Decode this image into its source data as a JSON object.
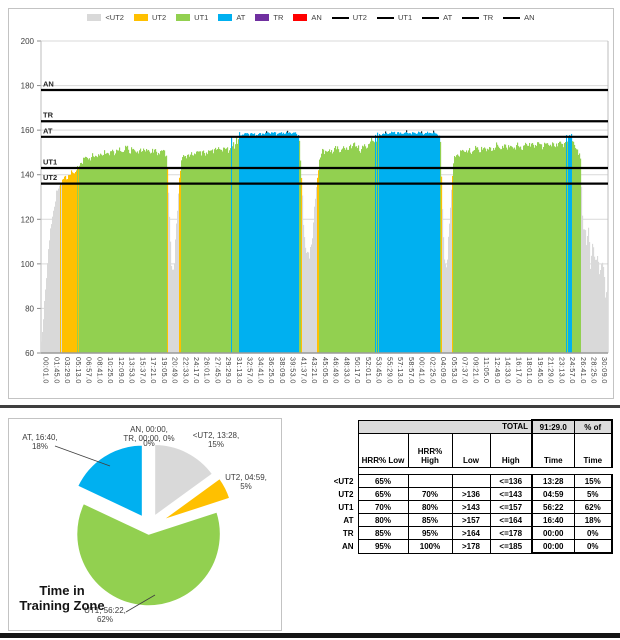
{
  "colors": {
    "lt_ut2": "#D9D9D9",
    "ut2": "#FFC000",
    "ut1": "#92D050",
    "at": "#00B0F0",
    "tr": "#7030A0",
    "an": "#FF0000",
    "zone_line": "#000000",
    "grid": "#D9D9D9",
    "axis": "#9a9a9a",
    "text": "#404040",
    "cap": "#262626"
  },
  "legend": {
    "area_items": [
      {
        "label": "<UT2",
        "color": "#D9D9D9"
      },
      {
        "label": "UT2",
        "color": "#FFC000"
      },
      {
        "label": "UT1",
        "color": "#92D050"
      },
      {
        "label": "AT",
        "color": "#00B0F0"
      },
      {
        "label": "TR",
        "color": "#7030A0"
      },
      {
        "label": "AN",
        "color": "#FF0000"
      }
    ],
    "line_items": [
      "UT2",
      "UT1",
      "AT",
      "TR",
      "AN"
    ]
  },
  "chart_data": {
    "type": "area",
    "title": "",
    "xlabel": "",
    "ylabel": "",
    "ylim": [
      60,
      200
    ],
    "yticks": [
      60,
      80,
      100,
      120,
      140,
      160,
      180,
      200
    ],
    "grid": true,
    "total_duration_s": 5489,
    "x_first_tick_s": 1,
    "x_tick_interval_s": 104,
    "xticklabels": [
      "00:01.0",
      "01:45.0",
      "03:29.0",
      "05:13.0",
      "06:57.0",
      "08:41.0",
      "10:25.0",
      "12:09.0",
      "13:53.0",
      "15:37.0",
      "17:21.0",
      "19:05.0",
      "20:49.0",
      "22:33.0",
      "24:17.0",
      "26:01.0",
      "27:45.0",
      "29:29.0",
      "31:13.0",
      "32:57.0",
      "34:41.0",
      "36:25.0",
      "38:09.0",
      "39:53.0",
      "41:37.0",
      "43:21.0",
      "45:05.0",
      "46:49.0",
      "48:33.0",
      "50:17.0",
      "52:01.0",
      "53:45.0",
      "55:29.0",
      "57:13.0",
      "58:57.0",
      "00:41.0",
      "02:25.0",
      "04:09.0",
      "05:53.0",
      "07:37.0",
      "09:21.0",
      "11:05.0",
      "12:49.0",
      "14:33.0",
      "16:17.0",
      "18:01.0",
      "19:45.0",
      "21:29.0",
      "23:13.0",
      "24:57.0",
      "26:41.0",
      "28:25.0",
      "30:09.0"
    ],
    "zones": [
      {
        "name": "<UT2",
        "max": 136,
        "color": "#D9D9D9"
      },
      {
        "name": "UT2",
        "max": 143,
        "color": "#FFC000"
      },
      {
        "name": "UT1",
        "max": 157,
        "color": "#92D050"
      },
      {
        "name": "AT",
        "max": 164,
        "color": "#00B0F0"
      },
      {
        "name": "TR",
        "max": 178,
        "color": "#7030A0"
      },
      {
        "name": "AN",
        "max": 185,
        "color": "#FF0000"
      }
    ],
    "zone_lines": [
      {
        "label": "UT2",
        "hr": 136
      },
      {
        "label": "UT1",
        "hr": 143
      },
      {
        "label": "AT",
        "hr": 157
      },
      {
        "label": "TR",
        "hr": 164
      },
      {
        "label": "AN",
        "hr": 178
      }
    ],
    "hr_profile": [
      [
        0,
        62
      ],
      [
        20,
        72
      ],
      [
        45,
        90
      ],
      [
        70,
        105
      ],
      [
        95,
        116
      ],
      [
        120,
        124
      ],
      [
        150,
        131
      ],
      [
        170,
        134
      ],
      [
        188,
        136.5
      ],
      [
        220,
        138
      ],
      [
        250,
        139
      ],
      [
        280,
        140
      ],
      [
        310,
        141
      ],
      [
        340,
        142
      ],
      [
        360,
        142.5
      ],
      [
        371,
        143.5
      ],
      [
        390,
        146
      ],
      [
        420,
        147
      ],
      [
        450,
        148
      ],
      [
        480,
        147
      ],
      [
        520,
        149
      ],
      [
        560,
        148
      ],
      [
        600,
        150
      ],
      [
        640,
        149
      ],
      [
        680,
        151
      ],
      [
        710,
        149
      ],
      [
        740,
        152
      ],
      [
        770,
        150
      ],
      [
        800,
        151
      ],
      [
        830,
        153
      ],
      [
        850,
        150
      ],
      [
        880,
        152
      ],
      [
        910,
        150
      ],
      [
        940,
        151
      ],
      [
        970,
        150
      ],
      [
        1000,
        152
      ],
      [
        1040,
        150
      ],
      [
        1080,
        151
      ],
      [
        1120,
        150
      ],
      [
        1160,
        150
      ],
      [
        1190,
        151
      ],
      [
        1218,
        149
      ],
      [
        1240,
        125
      ],
      [
        1262,
        100
      ],
      [
        1287,
        97
      ],
      [
        1310,
        115
      ],
      [
        1334,
        135
      ],
      [
        1357,
        146
      ],
      [
        1380,
        148
      ],
      [
        1410,
        149
      ],
      [
        1440,
        148
      ],
      [
        1470,
        150
      ],
      [
        1500,
        149
      ],
      [
        1530,
        151
      ],
      [
        1560,
        150
      ],
      [
        1590,
        149
      ],
      [
        1620,
        151
      ],
      [
        1650,
        150
      ],
      [
        1680,
        152
      ],
      [
        1710,
        151
      ],
      [
        1740,
        152
      ],
      [
        1770,
        151
      ],
      [
        1800,
        152
      ],
      [
        1832,
        151
      ],
      [
        1838,
        152
      ],
      [
        1843,
        158
      ],
      [
        1848,
        152
      ],
      [
        1862,
        153
      ],
      [
        1868,
        158
      ],
      [
        1873,
        153
      ],
      [
        1888,
        154
      ],
      [
        1895,
        158.5
      ],
      [
        1900,
        154
      ],
      [
        1912,
        155
      ],
      [
        1918,
        158.5
      ],
      [
        1933,
        158
      ],
      [
        2000,
        158.5
      ],
      [
        2100,
        158
      ],
      [
        2200,
        159
      ],
      [
        2300,
        158.5
      ],
      [
        2400,
        159
      ],
      [
        2470,
        158.5
      ],
      [
        2500,
        157.5
      ],
      [
        2525,
        135
      ],
      [
        2545,
        115
      ],
      [
        2570,
        105
      ],
      [
        2600,
        103
      ],
      [
        2625,
        112
      ],
      [
        2650,
        125
      ],
      [
        2675,
        138
      ],
      [
        2696,
        147
      ],
      [
        2720,
        150
      ],
      [
        2760,
        151
      ],
      [
        2800,
        150
      ],
      [
        2850,
        152
      ],
      [
        2900,
        151
      ],
      [
        2950,
        152
      ],
      [
        3000,
        152
      ],
      [
        3022,
        153
      ],
      [
        3030,
        158
      ],
      [
        3038,
        153
      ],
      [
        3060,
        152
      ],
      [
        3090,
        151
      ],
      [
        3120,
        153
      ],
      [
        3150,
        152
      ],
      [
        3168,
        153
      ],
      [
        3175,
        158
      ],
      [
        3182,
        153
      ],
      [
        3196,
        154
      ],
      [
        3205,
        158.5
      ],
      [
        3212,
        154
      ],
      [
        3228,
        155
      ],
      [
        3238,
        158.5
      ],
      [
        3248,
        155
      ],
      [
        3258,
        158.5
      ],
      [
        3270,
        156
      ],
      [
        3280,
        158.5
      ],
      [
        3295,
        158
      ],
      [
        3310,
        158.5
      ],
      [
        3334,
        158.5
      ],
      [
        3420,
        159
      ],
      [
        3480,
        158.5
      ],
      [
        3540,
        159
      ],
      [
        3600,
        158.5
      ],
      [
        3660,
        159
      ],
      [
        3720,
        158.5
      ],
      [
        3780,
        159
      ],
      [
        3830,
        158.5
      ],
      [
        3866,
        157
      ],
      [
        3885,
        125
      ],
      [
        3910,
        100
      ],
      [
        3930,
        98
      ],
      [
        3955,
        118
      ],
      [
        3975,
        135
      ],
      [
        3992,
        145
      ],
      [
        4010,
        148
      ],
      [
        4060,
        150
      ],
      [
        4110,
        151
      ],
      [
        4160,
        150
      ],
      [
        4210,
        152
      ],
      [
        4260,
        151
      ],
      [
        4310,
        152
      ],
      [
        4360,
        151
      ],
      [
        4410,
        153
      ],
      [
        4460,
        152
      ],
      [
        4510,
        153
      ],
      [
        4560,
        152
      ],
      [
        4610,
        153
      ],
      [
        4660,
        152
      ],
      [
        4710,
        154
      ],
      [
        4760,
        153
      ],
      [
        4810,
        154
      ],
      [
        4860,
        153
      ],
      [
        4910,
        154
      ],
      [
        4960,
        153
      ],
      [
        5010,
        154
      ],
      [
        5050,
        154
      ],
      [
        5074,
        154
      ],
      [
        5080,
        154
      ],
      [
        5086,
        158.5
      ],
      [
        5094,
        154
      ],
      [
        5102,
        155
      ],
      [
        5112,
        158.5
      ],
      [
        5125,
        158
      ],
      [
        5135,
        158.5
      ],
      [
        5145,
        155
      ],
      [
        5161,
        153
      ],
      [
        5180,
        152
      ],
      [
        5200,
        151
      ],
      [
        5219,
        148
      ],
      [
        5228,
        138
      ],
      [
        5240,
        125
      ],
      [
        5252,
        115
      ],
      [
        5265,
        120
      ],
      [
        5280,
        108
      ],
      [
        5300,
        114
      ],
      [
        5320,
        102
      ],
      [
        5345,
        110
      ],
      [
        5365,
        98
      ],
      [
        5390,
        106
      ],
      [
        5415,
        94
      ],
      [
        5440,
        102
      ],
      [
        5460,
        90
      ],
      [
        5489,
        86
      ]
    ]
  },
  "pie": {
    "title_line1": "Time in",
    "title_line2": "Training Zone",
    "slices": [
      {
        "name": "<UT2",
        "time": "13:28",
        "pct": 15,
        "color": "#D9D9D9"
      },
      {
        "name": "UT2",
        "time": "04:59",
        "pct": 5,
        "color": "#FFC000"
      },
      {
        "name": "UT1",
        "time": "56:22",
        "pct": 62,
        "color": "#92D050"
      },
      {
        "name": "AT",
        "time": "16:40",
        "pct": 18,
        "color": "#00B0F0"
      },
      {
        "name": "TR",
        "time": "00:00",
        "pct": 0,
        "color": "#7030A0"
      },
      {
        "name": "AN",
        "time": "00:00",
        "pct": 0,
        "color": "#FF0000"
      }
    ],
    "labels": [
      {
        "id": "at",
        "lines": [
          "AT, 16:40,",
          "18%"
        ]
      },
      {
        "id": "an-tr",
        "lines": [
          "AN, 00:00,",
          "TR, 00:00, 0%",
          "0%"
        ]
      },
      {
        "id": "lt-ut2",
        "lines": [
          "<UT2, 13:28,",
          "15%"
        ]
      },
      {
        "id": "ut2",
        "lines": [
          "UT2, 04:59,",
          "5%"
        ]
      },
      {
        "id": "ut1",
        "lines": [
          "UT1, 56:22,",
          "62%"
        ]
      }
    ]
  },
  "table": {
    "total_label": "TOTAL",
    "total_value": "91:29.0",
    "pct_of_label": "% of",
    "col_headers": [
      "HRR% Low",
      "HRR% High",
      "Low",
      "High",
      "Time",
      "Time"
    ],
    "rows": [
      {
        "zone": "<UT2",
        "hrr_low": "65%",
        "hrr_high": "",
        "low": "",
        "high": "<=136",
        "time": "13:28",
        "pct": "15%"
      },
      {
        "zone": "UT2",
        "hrr_low": "65%",
        "hrr_high": "70%",
        "low": ">136",
        "high": "<=143",
        "time": "04:59",
        "pct": "5%"
      },
      {
        "zone": "UT1",
        "hrr_low": "70%",
        "hrr_high": "80%",
        "low": ">143",
        "high": "<=157",
        "time": "56:22",
        "pct": "62%"
      },
      {
        "zone": "AT",
        "hrr_low": "80%",
        "hrr_high": "85%",
        "low": ">157",
        "high": "<=164",
        "time": "16:40",
        "pct": "18%"
      },
      {
        "zone": "TR",
        "hrr_low": "85%",
        "hrr_high": "95%",
        "low": ">164",
        "high": "<=178",
        "time": "00:00",
        "pct": "0%"
      },
      {
        "zone": "AN",
        "hrr_low": "95%",
        "hrr_high": "100%",
        "low": ">178",
        "high": "<=185",
        "time": "00:00",
        "pct": "0%"
      }
    ]
  }
}
